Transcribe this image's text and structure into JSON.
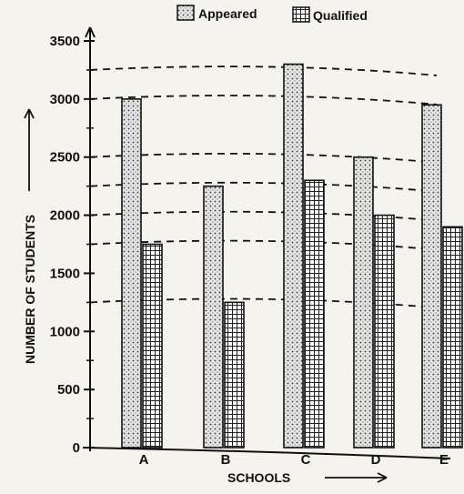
{
  "chart_data": {
    "type": "bar",
    "title": "",
    "xlabel": "SCHOOLS",
    "ylabel": "NUMBER OF STUDENTS",
    "categories": [
      "A",
      "B",
      "C",
      "D",
      "E"
    ],
    "series": [
      {
        "name": "Appeared",
        "values": [
          3000,
          2250,
          3300,
          2500,
          2950
        ]
      },
      {
        "name": "Qualified",
        "values": [
          1750,
          1250,
          2300,
          2000,
          1900
        ]
      }
    ],
    "ylim": [
      0,
      3500
    ],
    "yticks": [
      0,
      500,
      1000,
      1500,
      2000,
      2500,
      3000,
      3500
    ],
    "legend_position": "top",
    "grid": false,
    "colors": {
      "appeared": "#dcdcdc",
      "qualified": "#ffffff",
      "ink": "#111111"
    }
  },
  "legend": {
    "appeared_label": "Appeared",
    "qualified_label": "Qualified"
  }
}
